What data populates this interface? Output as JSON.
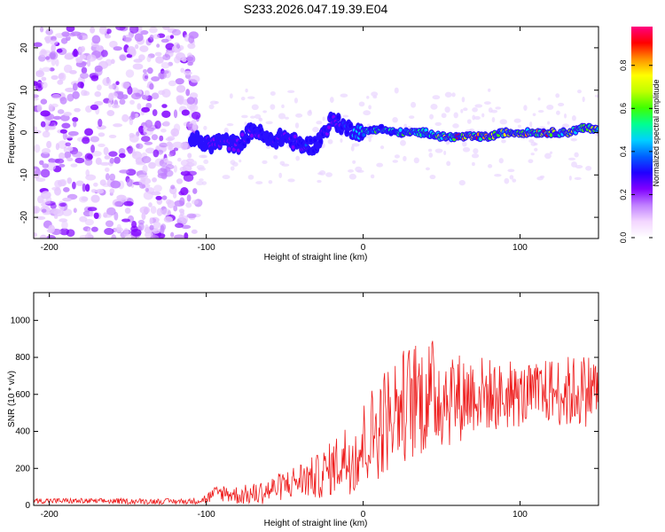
{
  "title": "S233.2026.047.19.39.E04",
  "chart_data": [
    {
      "type": "heatmap",
      "name": "spectrogram",
      "xlabel": "Height of straight line (km)",
      "ylabel": "Frequency (Hz)",
      "xlim": [
        -210,
        150
      ],
      "ylim": [
        -25,
        25
      ],
      "xticks": [
        -200,
        -100,
        0,
        100
      ],
      "yticks": [
        20,
        10,
        0,
        -10,
        -20
      ],
      "colorbar": {
        "label": "Normalized spectral amplitude",
        "ticks": [
          0.0,
          0.2,
          0.4,
          0.6,
          0.8
        ],
        "range": [
          0,
          0.98
        ],
        "colors": [
          "#ffffff",
          "#f3d6ff",
          "#c080ff",
          "#8000ff",
          "#2000ff",
          "#0060ff",
          "#00d0ff",
          "#00ff90",
          "#40ff00",
          "#c0ff00",
          "#ffff00",
          "#ff9000",
          "#ff0000",
          "#ff0080"
        ]
      },
      "ridge": {
        "x": [
          -110,
          -100,
          -90,
          -80,
          -70,
          -60,
          -50,
          -40,
          -30,
          -20,
          -10,
          0,
          10,
          20,
          30,
          40,
          50,
          60,
          70,
          80,
          90,
          100,
          110,
          120,
          130,
          140,
          150
        ],
        "freq": [
          -1,
          -3,
          -2,
          -3,
          1,
          -2,
          -1,
          -3,
          -3,
          3,
          1,
          0,
          1,
          0,
          0,
          0,
          -1,
          -1,
          -1,
          -1,
          0,
          0,
          0,
          0,
          0,
          1,
          1
        ],
        "amplitude": [
          0.1,
          0.25,
          0.2,
          0.25,
          0.3,
          0.3,
          0.25,
          0.35,
          0.3,
          0.3,
          0.4,
          0.5,
          0.55,
          0.5,
          0.6,
          0.55,
          0.7,
          0.85,
          0.9,
          0.85,
          0.7,
          0.7,
          0.8,
          0.85,
          0.7,
          0.75,
          0.7
        ]
      }
    },
    {
      "type": "line",
      "name": "snr",
      "xlabel": "Height of straight line (km)",
      "ylabel": "SNR (10 * v/v)",
      "xlim": [
        -210,
        150
      ],
      "ylim": [
        0,
        1150
      ],
      "xticks": [
        -200,
        -100,
        0,
        100
      ],
      "yticks": [
        0,
        200,
        400,
        600,
        800,
        1000
      ],
      "color": "#ee1c1c",
      "envelope": {
        "x": [
          -210,
          -200,
          -150,
          -110,
          -100,
          -95,
          -90,
          -80,
          -70,
          -60,
          -50,
          -40,
          -30,
          -20,
          -15,
          -10,
          -5,
          0,
          5,
          10,
          15,
          20,
          30,
          40,
          50,
          60,
          70,
          80,
          90,
          100,
          110,
          120,
          130,
          140,
          150
        ],
        "mean": [
          25,
          25,
          22,
          22,
          35,
          60,
          70,
          55,
          60,
          80,
          110,
          140,
          150,
          200,
          240,
          260,
          280,
          330,
          380,
          420,
          470,
          520,
          560,
          590,
          600,
          580,
          610,
          600,
          580,
          590,
          600,
          620,
          610,
          620,
          640
        ],
        "spread": [
          15,
          15,
          15,
          15,
          30,
          40,
          50,
          50,
          60,
          70,
          80,
          100,
          120,
          150,
          170,
          200,
          220,
          240,
          260,
          280,
          300,
          300,
          320,
          320,
          300,
          250,
          220,
          200,
          180,
          170,
          170,
          180,
          200,
          200,
          200
        ]
      }
    }
  ]
}
